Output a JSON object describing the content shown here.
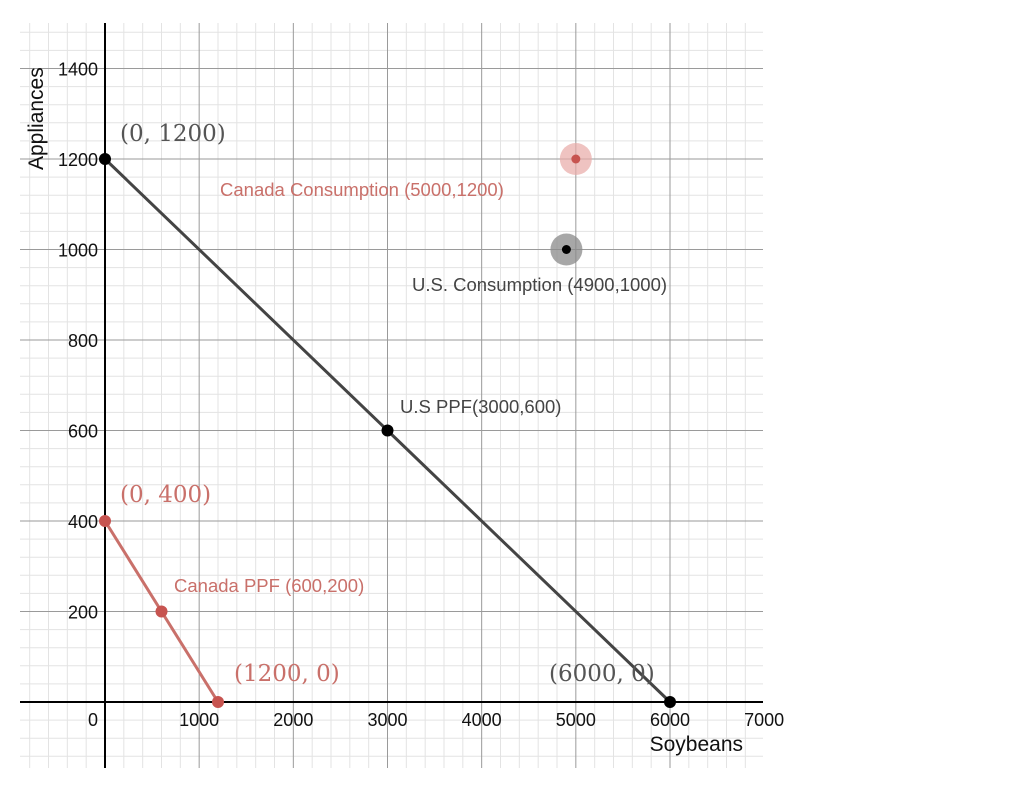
{
  "chart_data": {
    "type": "line",
    "xlabel": "Soybeans",
    "ylabel": "Appliances",
    "xlim": [
      -900,
      7000
    ],
    "ylim": [
      -200,
      1500
    ],
    "x_ticks": [
      0,
      1000,
      2000,
      3000,
      4000,
      5000,
      6000,
      7000
    ],
    "y_ticks": [
      200,
      400,
      600,
      800,
      1000,
      1200,
      1400
    ],
    "x_tick_labels": [
      "0",
      "1000",
      "2000",
      "3000",
      "4000",
      "5000",
      "6000",
      "7000"
    ],
    "y_tick_labels": [
      "200",
      "400",
      "600",
      "800",
      "1000",
      "1200",
      "1400"
    ],
    "grid": true,
    "colors": {
      "us": "#444444",
      "canada": "#c9706a",
      "point_dark": "#000000",
      "point_red": "#c75450"
    },
    "series": [
      {
        "name": "U.S PPF",
        "color": "#444444",
        "points": [
          [
            0,
            1200
          ],
          [
            3000,
            600
          ],
          [
            6000,
            0
          ]
        ],
        "labels": [
          "(0, 1200)",
          "U.S PPF(3000,600)",
          "(6000, 0)"
        ]
      },
      {
        "name": "Canada PPF",
        "color": "#c9706a",
        "points": [
          [
            0,
            400
          ],
          [
            600,
            200
          ],
          [
            1200,
            0
          ]
        ],
        "labels": [
          "(0, 400)",
          "Canada PPF (600,200)",
          "(1200, 0)"
        ]
      }
    ],
    "consumption_points": [
      {
        "name": "U.S. Consumption",
        "x": 4900,
        "y": 1000,
        "label": "U.S. Consumption (4900,1000)",
        "color": "#444444"
      },
      {
        "name": "Canada Consumption",
        "x": 5000,
        "y": 1200,
        "label": "Canada Consumption (5000,1200)",
        "color": "#c9706a"
      }
    ]
  }
}
